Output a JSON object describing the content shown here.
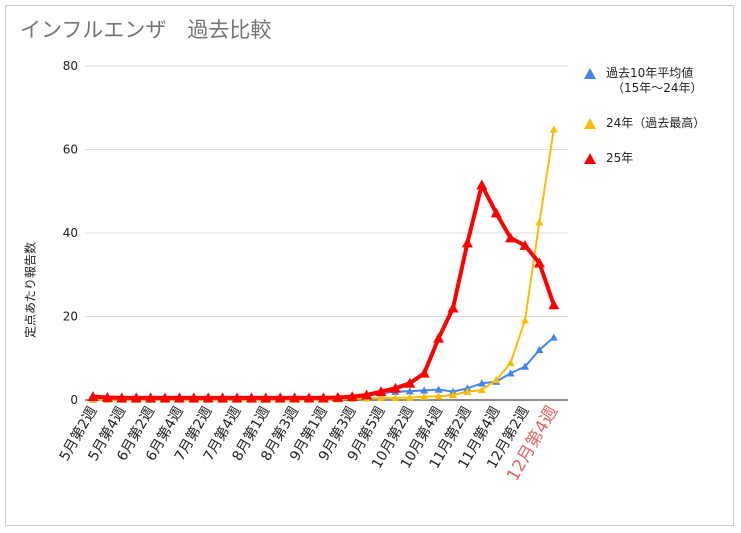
{
  "chart_data": {
    "type": "line",
    "title": "インフルエンザ　過去比較",
    "ylabel": "定点あたり報告数",
    "xlabel": "",
    "ylim": [
      0,
      80
    ],
    "yticks": [
      "0",
      "20",
      "40",
      "60",
      "80"
    ],
    "grid": true,
    "legend_position": "right",
    "x_tick_labels": [
      "5月第2週",
      "5月第4週",
      "6月第2週",
      "6月第4週",
      "7月第2週",
      "7月第4週",
      "8月第1週",
      "8月第3週",
      "9月第1週",
      "9月第3週",
      "9月第5週",
      "10月第2週",
      "10月第4週",
      "11月第2週",
      "11月第4週",
      "12月第2週",
      "12月第4週"
    ],
    "highlight_tick_color": "#e06666",
    "series": [
      {
        "name": "過去10年平均値（15年〜24年）",
        "legend_lines": [
          "過去10年平均値",
          "（15年〜24年）"
        ],
        "color": "#4285f4",
        "values": [
          0.1,
          0.1,
          0.1,
          0.1,
          0.1,
          0.1,
          0.1,
          0.1,
          0.1,
          0.1,
          0.1,
          0.1,
          0.1,
          0.1,
          0.2,
          0.2,
          0.2,
          0.3,
          0.5,
          0.9,
          1.6,
          2.0,
          2.1,
          2.3,
          2.5,
          2.0,
          2.8,
          4.0,
          4.4,
          6.4,
          8.0,
          12.0,
          15.0
        ]
      },
      {
        "name": "24年（過去最高）",
        "legend_lines": [
          "24年（過去最高）"
        ],
        "color": "#fbbc04",
        "values": [
          0.1,
          0.1,
          0.1,
          0.1,
          0.1,
          0.1,
          0.1,
          0.1,
          0.1,
          0.1,
          0.1,
          0.1,
          0.1,
          0.1,
          0.1,
          0.1,
          0.1,
          0.2,
          0.3,
          0.4,
          0.5,
          0.5,
          0.6,
          0.8,
          0.9,
          1.2,
          2.0,
          2.4,
          4.8,
          8.9,
          19.1,
          42.6,
          64.8
        ]
      },
      {
        "name": "25年",
        "legend_lines": [
          "25年"
        ],
        "color": "#ff0000",
        "values": [
          0.8,
          0.6,
          0.5,
          0.5,
          0.5,
          0.5,
          0.5,
          0.5,
          0.5,
          0.5,
          0.5,
          0.5,
          0.5,
          0.5,
          0.5,
          0.5,
          0.5,
          0.6,
          0.8,
          1.2,
          2.0,
          2.8,
          4.0,
          6.4,
          14.8,
          22.0,
          37.6,
          51.5,
          44.8,
          38.8,
          37.0,
          32.8,
          22.8
        ]
      }
    ]
  }
}
